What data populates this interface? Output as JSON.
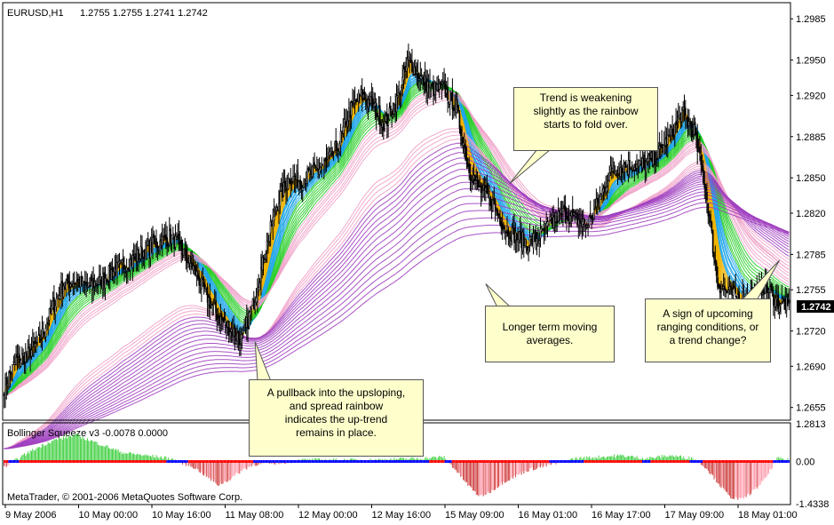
{
  "chart_data": {
    "type": "candlestick",
    "symbol_header": "EURUSD,H1",
    "ohlc_header": "1.2755 1.2755 1.2741 1.2742",
    "current_price_label": "1.2742",
    "current_price": 1.2742,
    "ylim": [
      1.2645,
      1.2998
    ],
    "y_ticks": [
      "1.2985",
      "1.2950",
      "1.2920",
      "1.2885",
      "1.2850",
      "1.2820",
      "1.2785",
      "1.2755",
      "1.2720",
      "1.2690",
      "1.2655"
    ],
    "x_ticks": [
      "9 May 2006",
      "10 May 00:00",
      "10 May 16:00",
      "11 May 08:00",
      "12 May 00:00",
      "12 May 16:00",
      "15 May 09:00",
      "16 May 01:00",
      "16 May 17:00",
      "17 May 09:00",
      "18 May 01:00"
    ],
    "approx_close_path": [
      [
        0,
        1.2672
      ],
      [
        10,
        1.2695
      ],
      [
        20,
        1.27
      ],
      [
        30,
        1.2712
      ],
      [
        40,
        1.2738
      ],
      [
        50,
        1.276
      ],
      [
        60,
        1.2762
      ],
      [
        70,
        1.2758
      ],
      [
        80,
        1.2762
      ],
      [
        90,
        1.277
      ],
      [
        100,
        1.2775
      ],
      [
        110,
        1.2782
      ],
      [
        120,
        1.279
      ],
      [
        130,
        1.2795
      ],
      [
        140,
        1.28
      ],
      [
        150,
        1.2788
      ],
      [
        160,
        1.2772
      ],
      [
        170,
        1.275
      ],
      [
        180,
        1.2732
      ],
      [
        190,
        1.2722
      ],
      [
        200,
        1.2712
      ],
      [
        210,
        1.2745
      ],
      [
        220,
        1.279
      ],
      [
        230,
        1.283
      ],
      [
        240,
        1.285
      ],
      [
        250,
        1.2848
      ],
      [
        260,
        1.2855
      ],
      [
        270,
        1.2862
      ],
      [
        280,
        1.2875
      ],
      [
        290,
        1.2905
      ],
      [
        300,
        1.292
      ],
      [
        310,
        1.2912
      ],
      [
        320,
        1.2895
      ],
      [
        330,
        1.2915
      ],
      [
        340,
        1.295
      ],
      [
        350,
        1.2935
      ],
      [
        360,
        1.2925
      ],
      [
        370,
        1.2925
      ],
      [
        380,
        1.291
      ],
      [
        390,
        1.286
      ],
      [
        400,
        1.284
      ],
      [
        410,
        1.283
      ],
      [
        420,
        1.281
      ],
      [
        430,
        1.28
      ],
      [
        440,
        1.2795
      ],
      [
        450,
        1.28
      ],
      [
        460,
        1.2812
      ],
      [
        470,
        1.282
      ],
      [
        480,
        1.2815
      ],
      [
        490,
        1.281
      ],
      [
        500,
        1.283
      ],
      [
        510,
        1.2855
      ],
      [
        520,
        1.286
      ],
      [
        530,
        1.286
      ],
      [
        540,
        1.2862
      ],
      [
        550,
        1.287
      ],
      [
        560,
        1.2885
      ],
      [
        570,
        1.2905
      ],
      [
        580,
        1.289
      ],
      [
        590,
        1.284
      ],
      [
        600,
        1.276
      ],
      [
        610,
        1.2752
      ],
      [
        620,
        1.2748
      ],
      [
        630,
        1.2752
      ],
      [
        640,
        1.2758
      ],
      [
        650,
        1.2745
      ],
      [
        660,
        1.2742
      ]
    ],
    "indicator": {
      "label": "Bollinger Squeeze v3 -0.0078 0.0000",
      "y_ticks": [
        "1.2813",
        "0.00",
        "-1.4338"
      ],
      "ylim": [
        -1.4338,
        1.2813
      ],
      "approx_histogram": [
        [
          0,
          -0.2
        ],
        [
          20,
          0.3
        ],
        [
          40,
          0.7
        ],
        [
          60,
          0.9
        ],
        [
          80,
          0.6
        ],
        [
          100,
          0.3
        ],
        [
          120,
          0.2
        ],
        [
          140,
          0.1
        ],
        [
          160,
          -0.2
        ],
        [
          170,
          -0.5
        ],
        [
          180,
          -0.8
        ],
        [
          190,
          -0.6
        ],
        [
          200,
          -0.3
        ],
        [
          210,
          -0.1
        ],
        [
          230,
          -0.05
        ],
        [
          250,
          0.05
        ],
        [
          270,
          0.05
        ],
        [
          290,
          0.05
        ],
        [
          310,
          0.05
        ],
        [
          330,
          0.08
        ],
        [
          350,
          0.1
        ],
        [
          370,
          0.15
        ],
        [
          380,
          -0.3
        ],
        [
          390,
          -0.8
        ],
        [
          400,
          -1.2
        ],
        [
          410,
          -1.0
        ],
        [
          420,
          -0.7
        ],
        [
          430,
          -0.5
        ],
        [
          440,
          -0.3
        ],
        [
          460,
          -0.1
        ],
        [
          480,
          0.1
        ],
        [
          500,
          0.15
        ],
        [
          520,
          0.2
        ],
        [
          540,
          0.1
        ],
        [
          560,
          0.2
        ],
        [
          580,
          0.1
        ],
        [
          590,
          -0.2
        ],
        [
          600,
          -0.7
        ],
        [
          610,
          -1.2
        ],
        [
          620,
          -1.3
        ],
        [
          630,
          -1.0
        ],
        [
          640,
          -0.6
        ],
        [
          650,
          0.1
        ],
        [
          660,
          0.05
        ]
      ]
    },
    "annotations": [
      {
        "text": "Trend is weakening\nslightly as the rainbow\nstarts to fold over.",
        "at": [
          425,
          1.2845
        ]
      },
      {
        "text": "Longer term moving\naverages.",
        "at": [
          405,
          1.276
        ]
      },
      {
        "text": "A sign of upcoming\nranging conditions, or\na trend change?",
        "at": [
          652,
          1.278
        ]
      },
      {
        "text": "A pullback into the upsloping,\nand spread rainbow\nindicates the up-trend\nremains in place.",
        "at": [
          211,
          1.2711
        ]
      }
    ],
    "copyright": "MetaTrader, © 2001-2006 MetaQuotes Software Corp."
  },
  "colors": {
    "bull_candle": "#ffffff",
    "bear_candle": "#000000",
    "ribbon_short": "#f0b400",
    "ribbon_mid_blue": "#1aa3e8",
    "ribbon_mid_green": "#22cc22",
    "ribbon_long_pink": "#f0a0c8",
    "ribbon_long_purple": "#a040c0",
    "hist_green": "#33cc33",
    "hist_red": "#cc3333",
    "hist_pink": "#ff99aa",
    "zero_red": "#ff0000",
    "zero_blue": "#0000ff",
    "callout_fill": "#ffffcc"
  }
}
